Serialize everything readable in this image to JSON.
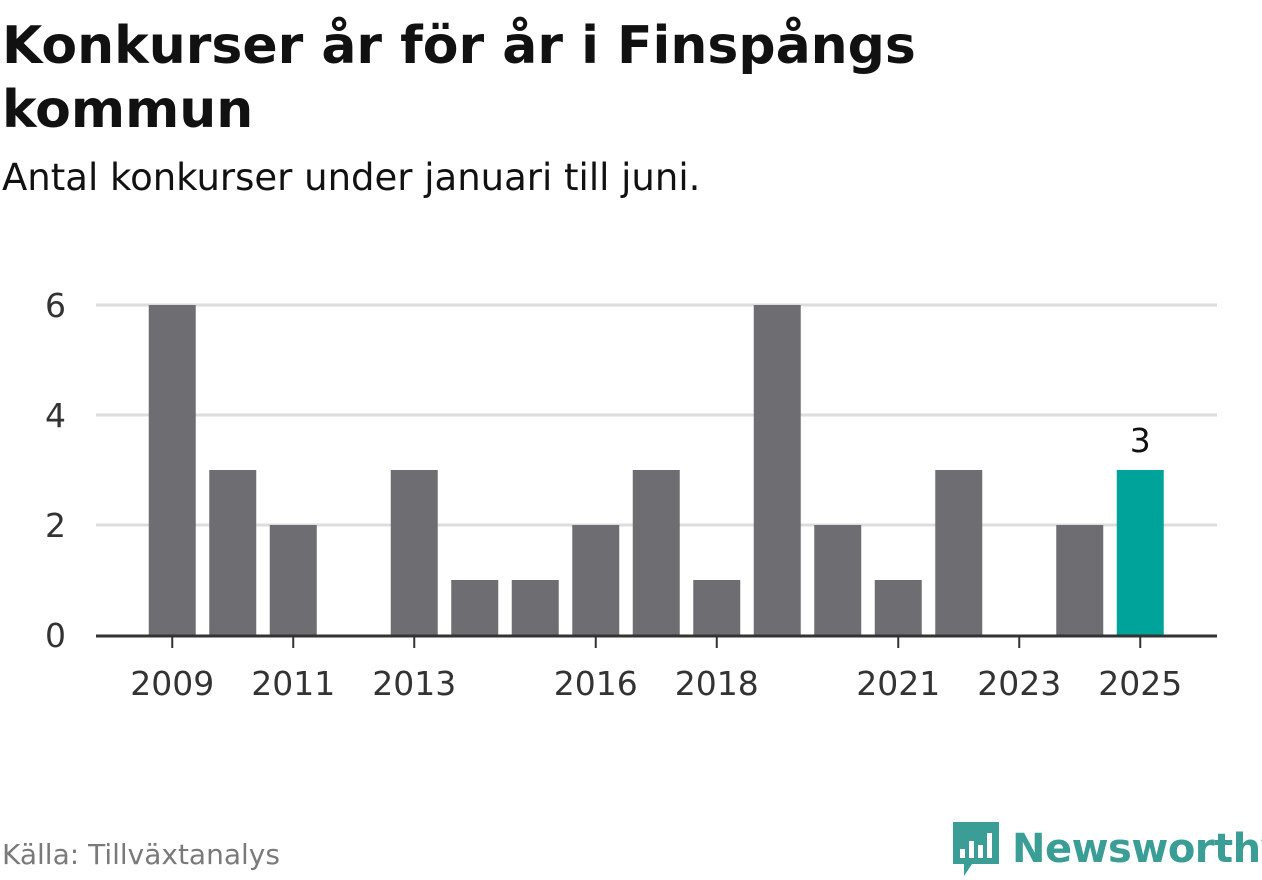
{
  "title": "Konkurser år för år i Finspångs kommun",
  "subtitle": "Antal konkurser under januari till juni.",
  "source": "Källa: Tillväxtanalys",
  "brand": {
    "name": "Newsworthy",
    "color": "#3a9e96"
  },
  "colors": {
    "bar": "#6e6d72",
    "highlight": "#00a39a",
    "grid": "#dddddd",
    "axis": "#333333"
  },
  "chart_data": {
    "type": "bar",
    "categories": [
      "2009",
      "2010",
      "2011",
      "2012",
      "2013",
      "2014",
      "2015",
      "2016",
      "2017",
      "2018",
      "2019",
      "2020",
      "2021",
      "2022",
      "2023",
      "2024",
      "2025"
    ],
    "values": [
      6,
      3,
      2,
      0,
      3,
      1,
      1,
      2,
      3,
      1,
      6,
      2,
      1,
      3,
      0,
      2,
      3
    ],
    "highlight_index": 16,
    "data_labels": [
      {
        "index": 16,
        "text": "3"
      }
    ],
    "x_tick_labels": [
      "2009",
      "2011",
      "2013",
      "2016",
      "2018",
      "2021",
      "2023",
      "2025"
    ],
    "y_ticks": [
      0,
      2,
      4,
      6
    ],
    "ylim": [
      0,
      6
    ],
    "grid": true,
    "legend": "none"
  }
}
